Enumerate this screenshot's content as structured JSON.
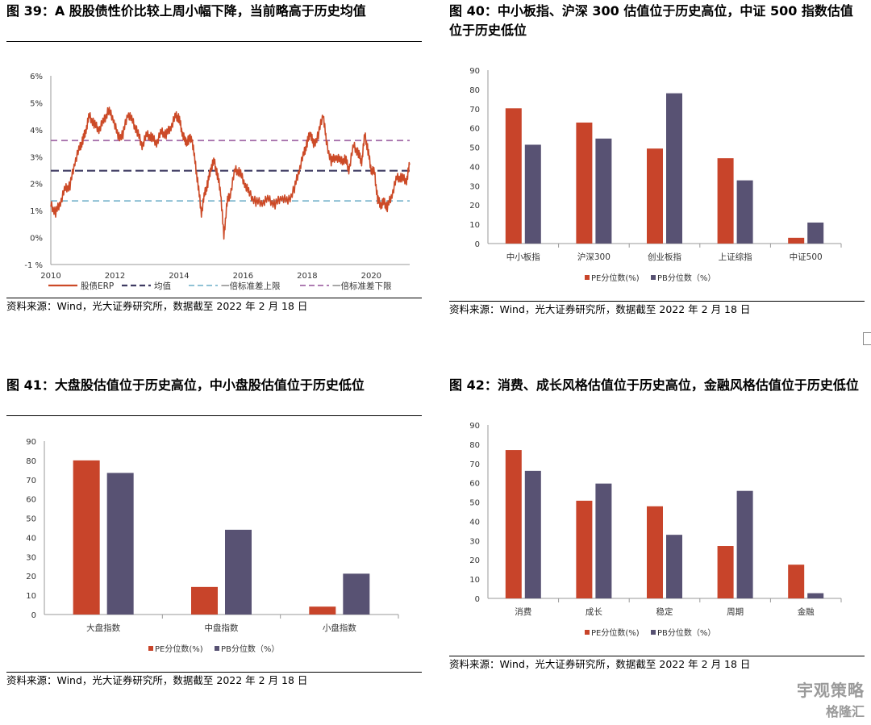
{
  "source_text": "资料来源：Wind，光大证券研究所，数据截至 2022 年 2 月 18 日",
  "watermark": {
    "line1": "宇观策略",
    "line2": "格隆汇"
  },
  "colors": {
    "pe": "#C8442A",
    "pb": "#585273",
    "erp": "#CC4A27",
    "mean": "#3F3B62",
    "upper": "#80B9CF",
    "lower": "#A26AA8"
  },
  "chart_data": [
    {
      "type": "line",
      "title": "图 39：A 股股债性价比较上周小幅下降，当前略高于历史均值",
      "x_ticks": [
        "2010",
        "2012",
        "2014",
        "2016",
        "2018",
        "2020"
      ],
      "y_ticks": [
        "6%",
        "5%",
        "4%",
        "3%",
        "2%",
        "1%",
        "0%",
        "-1 %"
      ],
      "ylim": [
        -1,
        6
      ],
      "xlim": [
        2010,
        2021.2
      ],
      "series": [
        {
          "name": "股债ERP",
          "x": [
            2010.0,
            2010.15,
            2010.3,
            2010.45,
            2010.6,
            2010.75,
            2010.9,
            2011.0,
            2011.1,
            2011.2,
            2011.35,
            2011.5,
            2011.65,
            2011.8,
            2011.95,
            2012.1,
            2012.25,
            2012.4,
            2012.55,
            2012.7,
            2012.85,
            2013.0,
            2013.15,
            2013.3,
            2013.45,
            2013.6,
            2013.75,
            2013.9,
            2014.0,
            2014.1,
            2014.2,
            2014.3,
            2014.4,
            2014.5,
            2014.6,
            2014.7,
            2014.8,
            2014.9,
            2015.0,
            2015.1,
            2015.2,
            2015.3,
            2015.4,
            2015.5,
            2015.6,
            2015.75,
            2015.9,
            2016.05,
            2016.2,
            2016.4,
            2016.6,
            2016.8,
            2017.0,
            2017.2,
            2017.4,
            2017.6,
            2017.75,
            2017.9,
            2018.0,
            2018.1,
            2018.2,
            2018.35,
            2018.5,
            2018.6,
            2018.75,
            2018.9,
            2019.05,
            2019.2,
            2019.3,
            2019.45,
            2019.6,
            2019.7,
            2019.8,
            2019.9,
            2020.0,
            2020.1,
            2020.2,
            2020.3,
            2020.4,
            2020.5,
            2020.65,
            2020.8,
            2020.95,
            2021.1,
            2021.2
          ],
          "values": [
            1.2,
            0.9,
            1.3,
            1.8,
            1.9,
            2.8,
            3.3,
            3.6,
            4.0,
            4.5,
            4.2,
            4.0,
            4.3,
            4.7,
            4.4,
            3.7,
            3.8,
            4.6,
            4.3,
            3.9,
            3.4,
            3.8,
            3.7,
            3.5,
            3.9,
            3.8,
            4.1,
            4.5,
            4.4,
            3.9,
            3.5,
            3.6,
            3.7,
            2.8,
            1.9,
            0.9,
            1.6,
            2.0,
            2.6,
            2.8,
            2.3,
            1.7,
            0.0,
            1.3,
            1.6,
            2.5,
            2.4,
            2.0,
            1.6,
            1.3,
            1.3,
            1.4,
            1.2,
            1.5,
            1.3,
            1.8,
            2.5,
            3.1,
            3.5,
            3.9,
            3.4,
            3.8,
            4.6,
            3.5,
            2.8,
            3.0,
            2.8,
            2.9,
            2.5,
            3.4,
            3.1,
            2.8,
            3.8,
            3.2,
            2.5,
            2.4,
            1.4,
            1.2,
            1.3,
            1.1,
            1.6,
            2.2,
            2.2,
            2.1,
            2.7
          ]
        },
        {
          "name": "均值",
          "values": [
            2.48
          ]
        },
        {
          "name": "一倍标准差上限",
          "values": [
            1.36
          ]
        },
        {
          "name": "一倍标准差下限",
          "values": [
            3.6
          ]
        }
      ]
    },
    {
      "type": "bar",
      "title": "图 40：中小板指、沪深 300 估值位于历史高位，中证 500 指数估值位于历史低位",
      "categories": [
        "中小板指",
        "沪深300",
        "创业板指",
        "上证综指",
        "中证500"
      ],
      "ylim": [
        0,
        90
      ],
      "y_ticks": [
        "90",
        "80",
        "70",
        "60",
        "50",
        "40",
        "30",
        "20",
        "10",
        "0"
      ],
      "series": [
        {
          "name": "PE分位数(%)",
          "values": [
            70.2,
            62.8,
            49.3,
            44.3,
            3.0
          ]
        },
        {
          "name": "PB分位数（%）",
          "values": [
            51.3,
            54.5,
            78.0,
            32.8,
            10.9
          ]
        }
      ]
    },
    {
      "type": "bar",
      "title": "图 41：大盘股估值位于历史高位，中小盘股估值位于历史低位",
      "categories": [
        "大盘指数",
        "中盘指数",
        "小盘指数"
      ],
      "ylim": [
        0,
        90
      ],
      "y_ticks": [
        "90",
        "80",
        "70",
        "60",
        "50",
        "40",
        "30",
        "20",
        "10",
        "0"
      ],
      "series": [
        {
          "name": "PE分位数(%)",
          "values": [
            80.0,
            14.3,
            4.1
          ]
        },
        {
          "name": "PB分位数（%）",
          "values": [
            73.5,
            44.0,
            21.2
          ]
        }
      ]
    },
    {
      "type": "bar",
      "title": "图 42：消费、成长风格估值位于历史高位，金融风格估值位于历史低位",
      "categories": [
        "消费",
        "成长",
        "稳定",
        "周期",
        "金融"
      ],
      "ylim": [
        0,
        90
      ],
      "y_ticks": [
        "90",
        "80",
        "70",
        "60",
        "50",
        "40",
        "30",
        "20",
        "10",
        "0"
      ],
      "series": [
        {
          "name": "PE分位数(%)",
          "values": [
            77.0,
            50.7,
            47.8,
            27.2,
            17.5
          ]
        },
        {
          "name": "PB分位数（%）",
          "values": [
            66.2,
            59.6,
            33.0,
            55.8,
            2.7
          ]
        }
      ]
    }
  ]
}
